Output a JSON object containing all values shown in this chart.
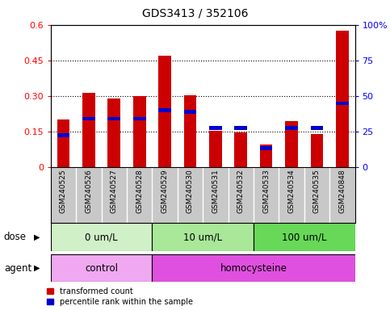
{
  "title": "GDS3413 / 352106",
  "samples": [
    "GSM240525",
    "GSM240526",
    "GSM240527",
    "GSM240528",
    "GSM240529",
    "GSM240530",
    "GSM240531",
    "GSM240532",
    "GSM240533",
    "GSM240534",
    "GSM240535",
    "GSM240848"
  ],
  "red_values": [
    0.2,
    0.315,
    0.29,
    0.3,
    0.47,
    0.305,
    0.155,
    0.148,
    0.095,
    0.195,
    0.14,
    0.575
  ],
  "blue_values": [
    0.135,
    0.205,
    0.205,
    0.205,
    0.24,
    0.235,
    0.165,
    0.165,
    0.08,
    0.165,
    0.165,
    0.27
  ],
  "dose_groups": [
    {
      "label": "0 um/L",
      "start": 0,
      "end": 4,
      "color": "#c8f0c0"
    },
    {
      "label": "10 um/L",
      "start": 4,
      "end": 8,
      "color": "#a0e890"
    },
    {
      "label": "100 um/L",
      "start": 8,
      "end": 12,
      "color": "#60d050"
    }
  ],
  "agent_groups": [
    {
      "label": "control",
      "start": 0,
      "end": 4,
      "color": "#f0a0f0"
    },
    {
      "label": "homocysteine",
      "start": 4,
      "end": 12,
      "color": "#e060e0"
    }
  ],
  "ylim_left": [
    0,
    0.6
  ],
  "ylim_right": [
    0,
    100
  ],
  "yticks_left": [
    0,
    0.15,
    0.3,
    0.45,
    0.6
  ],
  "yticks_right": [
    0,
    25,
    50,
    75,
    100
  ],
  "ytick_labels_left": [
    "0",
    "0.15",
    "0.30",
    "0.45",
    "0.6"
  ],
  "ytick_labels_right": [
    "0",
    "25",
    "50",
    "75",
    "100%"
  ],
  "bar_color_red": "#cc0000",
  "bar_color_blue": "#0000cc",
  "bar_width": 0.5,
  "legend_red": "transformed count",
  "legend_blue": "percentile rank within the sample",
  "dose_label": "dose",
  "agent_label": "agent",
  "xlim": [
    -0.5,
    11.5
  ],
  "gray_bg": "#c8c8c8"
}
